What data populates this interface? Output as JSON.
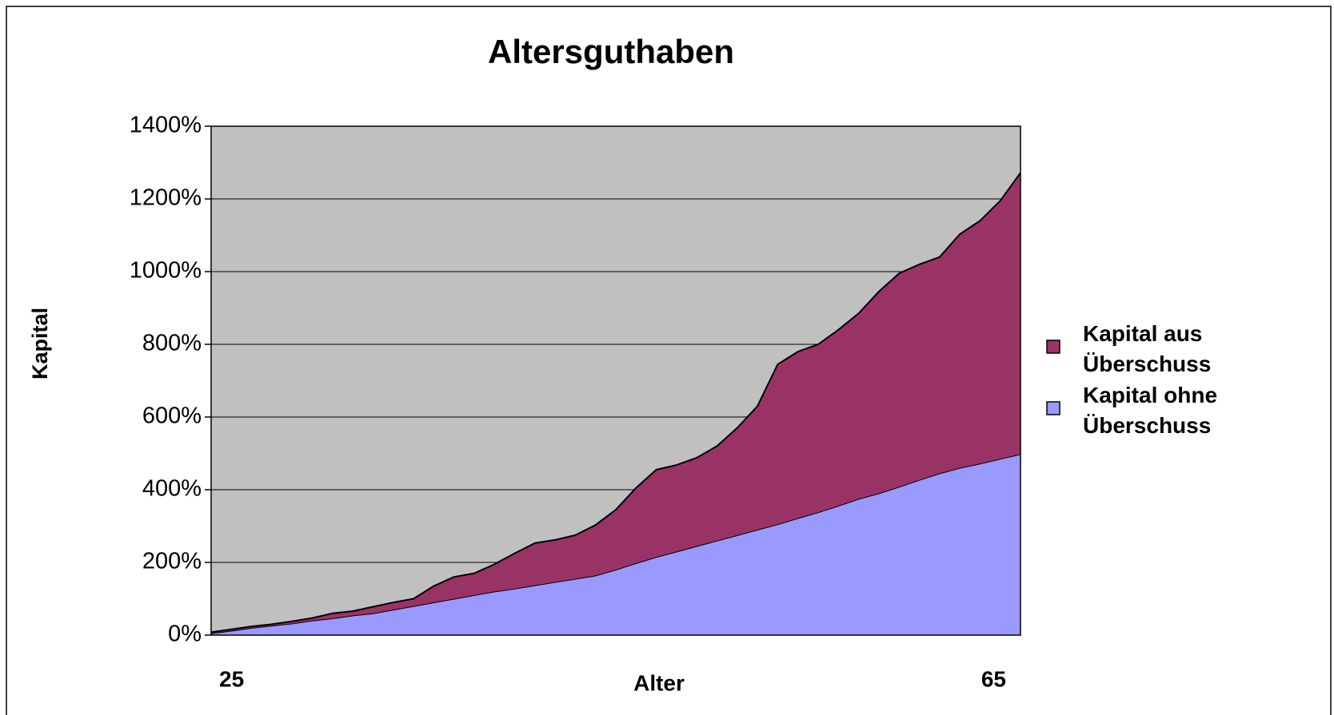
{
  "chart_data": {
    "type": "stacked_area",
    "title": "Altersguthaben",
    "x_label": "Alter",
    "y_label": "Kapital",
    "categories": [
      "25",
      null,
      null,
      null,
      null,
      null,
      null,
      null,
      null,
      null,
      null,
      null,
      null,
      null,
      null,
      null,
      null,
      null,
      null,
      null,
      null,
      null,
      null,
      null,
      null,
      null,
      null,
      null,
      null,
      null,
      null,
      null,
      null,
      null,
      null,
      null,
      null,
      null,
      null,
      null,
      "65"
    ],
    "series": [
      {
        "name": "Kapital ohne Überschuss",
        "color": "#9999ff",
        "values": [
          5,
          12,
          20,
          26,
          32,
          40,
          46,
          54,
          60,
          70,
          80,
          90,
          100,
          110,
          120,
          128,
          137,
          146,
          155,
          164,
          180,
          198,
          215,
          230,
          245,
          260,
          275,
          290,
          305,
          322,
          338,
          356,
          375,
          390,
          408,
          427,
          445,
          460,
          472,
          485,
          498
        ]
      },
      {
        "name": "Kapital aus Überschuss",
        "color": "#993366",
        "values": [
          3,
          4,
          4,
          4,
          6,
          7,
          14,
          12,
          18,
          20,
          20,
          45,
          60,
          60,
          75,
          97,
          116,
          116,
          120,
          139,
          165,
          207,
          240,
          238,
          243,
          260,
          295,
          340,
          440,
          458,
          462,
          484,
          510,
          555,
          587,
          593,
          595,
          643,
          668,
          710,
          774
        ]
      }
    ],
    "ylim": [
      0,
      1400
    ],
    "yticks": [
      {
        "value": 0,
        "label": "0%"
      },
      {
        "value": 200,
        "label": "200%"
      },
      {
        "value": 400,
        "label": "400%"
      },
      {
        "value": 600,
        "label": "600%"
      },
      {
        "value": 800,
        "label": "800%"
      },
      {
        "value": 1000,
        "label": "1000%"
      },
      {
        "value": 1200,
        "label": "1200%"
      },
      {
        "value": 1400,
        "label": "1400%"
      }
    ],
    "grid": true,
    "legend": "right",
    "plot_background": "#c0c0c0"
  }
}
